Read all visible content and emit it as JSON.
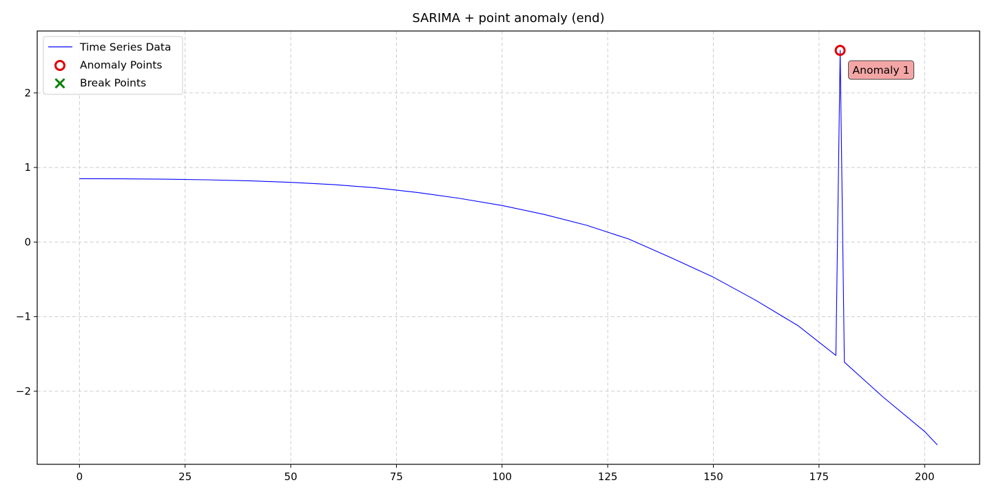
{
  "chart_data": {
    "type": "line",
    "title": "SARIMA + point anomaly (end)",
    "xlabel": "",
    "ylabel": "",
    "xlim": [
      -10,
      213
    ],
    "ylim": [
      -2.98,
      2.83
    ],
    "xticks": [
      0,
      25,
      50,
      75,
      100,
      125,
      150,
      175,
      200
    ],
    "xtick_labels": [
      "0",
      "25",
      "50",
      "75",
      "100",
      "125",
      "150",
      "175",
      "200"
    ],
    "yticks": [
      -2,
      -1,
      0,
      1,
      2
    ],
    "ytick_labels": [
      "−2",
      "−1",
      "0",
      "1",
      "2"
    ],
    "grid": true,
    "legend_position": "upper-left",
    "series": [
      {
        "name": "Time Series Data",
        "color": "#0000ff",
        "x": [
          0,
          10,
          20,
          30,
          40,
          50,
          60,
          70,
          80,
          90,
          100,
          110,
          120,
          130,
          140,
          150,
          160,
          170,
          179,
          180,
          181,
          190,
          200,
          203
        ],
        "y": [
          0.85,
          0.848,
          0.843,
          0.835,
          0.822,
          0.801,
          0.771,
          0.728,
          0.665,
          0.585,
          0.49,
          0.37,
          0.225,
          0.04,
          -0.21,
          -0.47,
          -0.78,
          -1.12,
          -1.52,
          2.57,
          -1.61,
          -2.07,
          -2.54,
          -2.72
        ]
      }
    ],
    "anomalies": {
      "name": "Anomaly Points",
      "color": "#e00000",
      "points": [
        {
          "x": 180,
          "y": 2.57
        }
      ]
    },
    "break_points": {
      "name": "Break Points",
      "color": "#008000",
      "points": []
    },
    "annotations": [
      {
        "text": "Anomaly 1",
        "x": 180,
        "y": 2.57
      }
    ]
  }
}
